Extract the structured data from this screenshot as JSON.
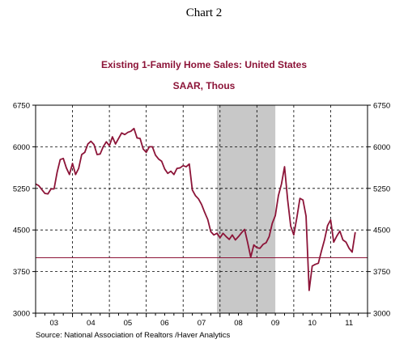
{
  "chart_caption": "Chart 2",
  "chart_data": {
    "type": "line",
    "title": "Existing 1-Family Home Sales: United States",
    "subtitle": "SAAR, Thous",
    "source": "Source:  National Association of Realtors /Haver Analytics",
    "ylim": [
      3000,
      6750
    ],
    "yticks": [
      3000,
      3750,
      4500,
      5250,
      6000,
      6750
    ],
    "ytick_labels": [
      "3000",
      "3750",
      "4500",
      "5250",
      "6000",
      "6750"
    ],
    "xlim": [
      2003,
      2012
    ],
    "x_year_labels": [
      {
        "label": "03",
        "year": 2003
      },
      {
        "label": "04",
        "year": 2004
      },
      {
        "label": "05",
        "year": 2005
      },
      {
        "label": "06",
        "year": 2006
      },
      {
        "label": "07",
        "year": 2007
      },
      {
        "label": "08",
        "year": 2008
      },
      {
        "label": "09",
        "year": 2009
      },
      {
        "label": "10",
        "year": 2010
      },
      {
        "label": "11",
        "year": 2011
      }
    ],
    "grid": true,
    "recession_shading": {
      "start": 2007.917,
      "end": 2009.5,
      "color": "#c8c8c8"
    },
    "reference_line": {
      "value": 4000,
      "color": "#8c1438"
    },
    "line_color": "#8c1438",
    "series": [
      {
        "x": [
          2003.0,
          2003.083,
          2003.167,
          2003.25,
          2003.333,
          2003.417,
          2003.5,
          2003.583,
          2003.667,
          2003.75,
          2003.833,
          2003.917,
          2004.0,
          2004.083,
          2004.167,
          2004.25,
          2004.333,
          2004.417,
          2004.5,
          2004.583,
          2004.667,
          2004.75,
          2004.833,
          2004.917,
          2005.0,
          2005.083,
          2005.167,
          2005.25,
          2005.333,
          2005.417,
          2005.5,
          2005.583,
          2005.667,
          2005.75,
          2005.833,
          2005.917,
          2006.0,
          2006.083,
          2006.167,
          2006.25,
          2006.333,
          2006.417,
          2006.5,
          2006.583,
          2006.667,
          2006.75,
          2006.833,
          2006.917,
          2007.0,
          2007.083,
          2007.167,
          2007.25,
          2007.333,
          2007.417,
          2007.5,
          2007.583,
          2007.667,
          2007.75,
          2007.833,
          2007.917,
          2008.0,
          2008.083,
          2008.167,
          2008.25,
          2008.333,
          2008.417,
          2008.5,
          2008.583,
          2008.667,
          2008.75,
          2008.833,
          2008.917,
          2009.0,
          2009.083,
          2009.167,
          2009.25,
          2009.333,
          2009.417,
          2009.5,
          2009.583,
          2009.667,
          2009.75,
          2009.833,
          2009.917,
          2010.0,
          2010.083,
          2010.167,
          2010.25,
          2010.333,
          2010.417,
          2010.5,
          2010.583,
          2010.667,
          2010.75,
          2010.833,
          2010.917,
          2011.0,
          2011.083,
          2011.167,
          2011.25,
          2011.333,
          2011.417,
          2011.5,
          2011.583,
          2011.667
        ],
        "values": [
          5330,
          5300,
          5230,
          5160,
          5150,
          5240,
          5240,
          5540,
          5770,
          5790,
          5620,
          5500,
          5700,
          5500,
          5610,
          5860,
          5900,
          6050,
          6100,
          6040,
          5860,
          5870,
          6000,
          6090,
          6020,
          6180,
          6050,
          6150,
          6250,
          6220,
          6260,
          6280,
          6330,
          6160,
          6150,
          5960,
          5900,
          6000,
          6000,
          5850,
          5780,
          5740,
          5600,
          5520,
          5560,
          5500,
          5610,
          5620,
          5660,
          5640,
          5690,
          5220,
          5120,
          5060,
          4960,
          4820,
          4690,
          4470,
          4410,
          4440,
          4360,
          4440,
          4380,
          4330,
          4410,
          4320,
          4380,
          4450,
          4510,
          4270,
          4010,
          4230,
          4180,
          4170,
          4240,
          4270,
          4380,
          4620,
          4760,
          5120,
          5330,
          5640,
          5050,
          4570,
          4410,
          4720,
          5070,
          5040,
          4750,
          3410,
          3850,
          3880,
          3900,
          4120,
          4320,
          4580,
          4680,
          4280,
          4390,
          4480,
          4320,
          4280,
          4170,
          4100,
          4460
        ]
      }
    ]
  }
}
